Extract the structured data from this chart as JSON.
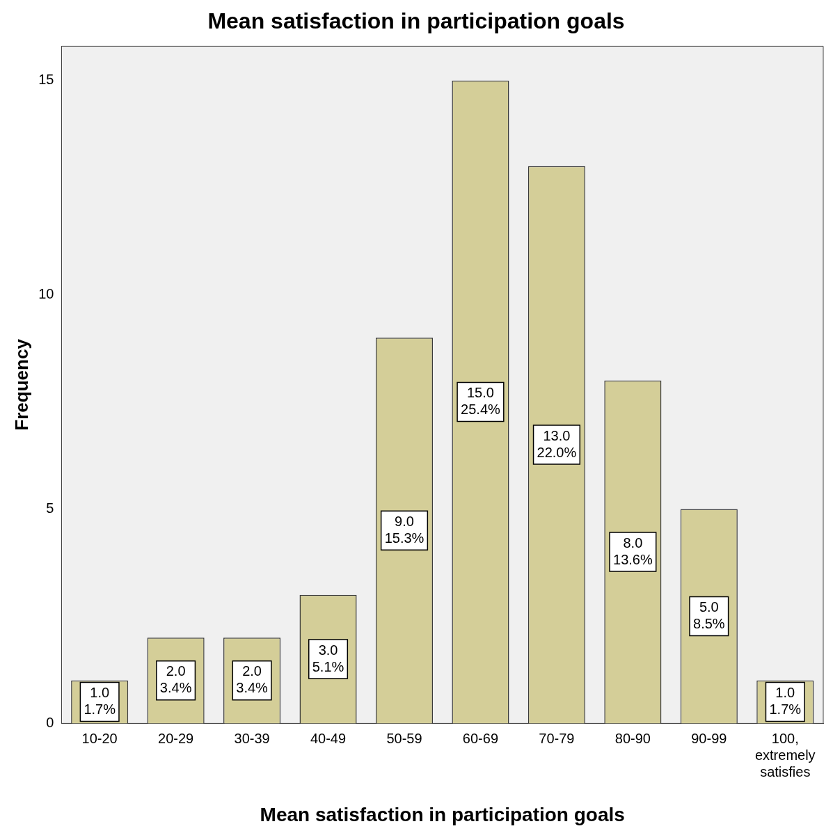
{
  "chart_data": {
    "type": "bar",
    "title": "Mean satisfaction in participation goals",
    "xlabel": "Mean satisfaction in participation goals",
    "ylabel": "Frequency",
    "categories": [
      "10-20",
      "20-29",
      "30-39",
      "40-49",
      "50-59",
      "60-69",
      "70-79",
      "80-90",
      "90-99",
      "100, extremely satisfies"
    ],
    "values": [
      1,
      2,
      2,
      3,
      9,
      15,
      13,
      8,
      5,
      1
    ],
    "value_labels": [
      "1.0\n1.7%",
      "2.0\n3.4%",
      "2.0\n3.4%",
      "3.0\n5.1%",
      "9.0\n15.3%",
      "15.0\n25.4%",
      "13.0\n22.0%",
      "8.0\n13.6%",
      "5.0\n8.5%",
      "1.0\n1.7%"
    ],
    "color": "#d4ce98",
    "ylim": [
      0,
      15.8
    ],
    "yticks": [
      0,
      5,
      10,
      15
    ],
    "grid": false,
    "legend": false
  }
}
